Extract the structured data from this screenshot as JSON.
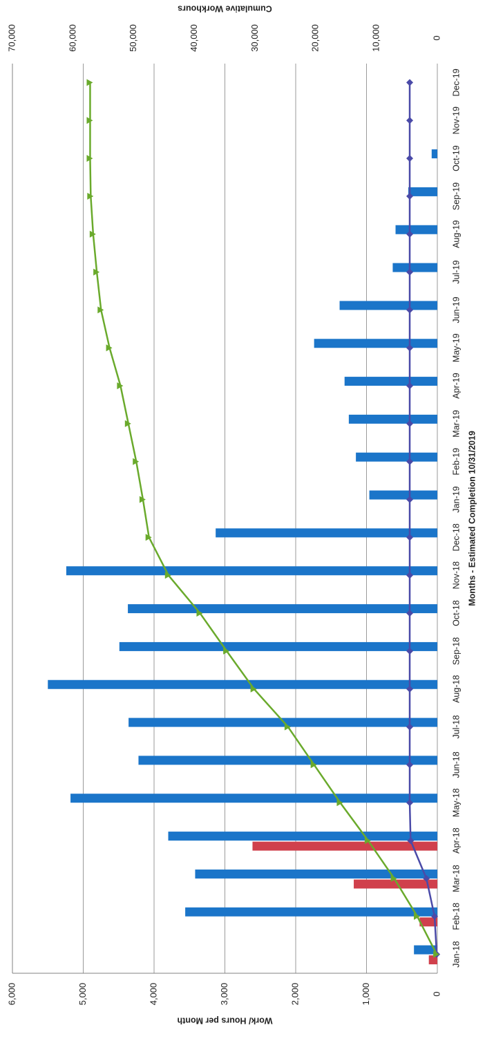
{
  "chart_data": {
    "type": "bar",
    "orientation": "rotated-90",
    "xlabel": "Months - Estimated Completion 10/31/2019",
    "ylabel": "Work/ Hours per Month",
    "y2label": "Cumulative Workhours",
    "ylim": [
      0,
      6000
    ],
    "y2lim": [
      0,
      70000
    ],
    "yticks": [
      "0",
      "1,000",
      "2,000",
      "3,000",
      "4,000",
      "5,000",
      "6,000"
    ],
    "y2ticks": [
      "0",
      "10,000",
      "20,000",
      "30,000",
      "40,000",
      "50,000",
      "60,000",
      "70,000"
    ],
    "grid": true,
    "categories": [
      "Jan-18",
      "Feb-18",
      "Mar-18",
      "Apr-18",
      "May-18",
      "Jun-18",
      "Jul-18",
      "Aug-18",
      "Sep-18",
      "Oct-18",
      "Nov-18",
      "Dec-18",
      "Jan-19",
      "Feb-19",
      "Mar-19",
      "Apr-19",
      "May-19",
      "Jun-19",
      "Jul-19",
      "Aug-19",
      "Sep-19",
      "Oct-19",
      "Nov-19",
      "Dec-19"
    ],
    "series": [
      {
        "kind": "bar",
        "axis": "primary",
        "color": "#1b75c9",
        "values": [
          330,
          3560,
          3420,
          3800,
          5180,
          4220,
          4360,
          5500,
          4490,
          4370,
          5240,
          3130,
          960,
          1150,
          1250,
          1310,
          1740,
          1380,
          630,
          590,
          410,
          80,
          0,
          0
        ]
      },
      {
        "kind": "bar",
        "axis": "primary",
        "color": "#d0404c",
        "values": [
          120,
          250,
          1180,
          2610,
          0,
          0,
          0,
          0,
          0,
          0,
          0,
          0,
          0,
          0,
          0,
          0,
          0,
          0,
          0,
          0,
          0,
          0,
          0,
          0
        ]
      },
      {
        "kind": "line",
        "axis": "secondary",
        "color": "#4a4aa8",
        "marker": "diamond",
        "values": [
          100,
          450,
          1800,
          4400,
          4550,
          4550,
          4550,
          4550,
          4550,
          4550,
          4550,
          4550,
          4550,
          4550,
          4550,
          4550,
          4550,
          4550,
          4550,
          4550,
          4550,
          4550,
          4550,
          4550
        ]
      },
      {
        "kind": "line",
        "axis": "secondary",
        "color": "#6aaa2c",
        "marker": "triangle",
        "values": [
          100,
          3300,
          7100,
          11400,
          16000,
          20300,
          24600,
          30200,
          34700,
          39100,
          44300,
          47500,
          48500,
          49600,
          50900,
          52200,
          54000,
          55400,
          56100,
          56700,
          57100,
          57200,
          57200,
          57200
        ]
      }
    ]
  }
}
